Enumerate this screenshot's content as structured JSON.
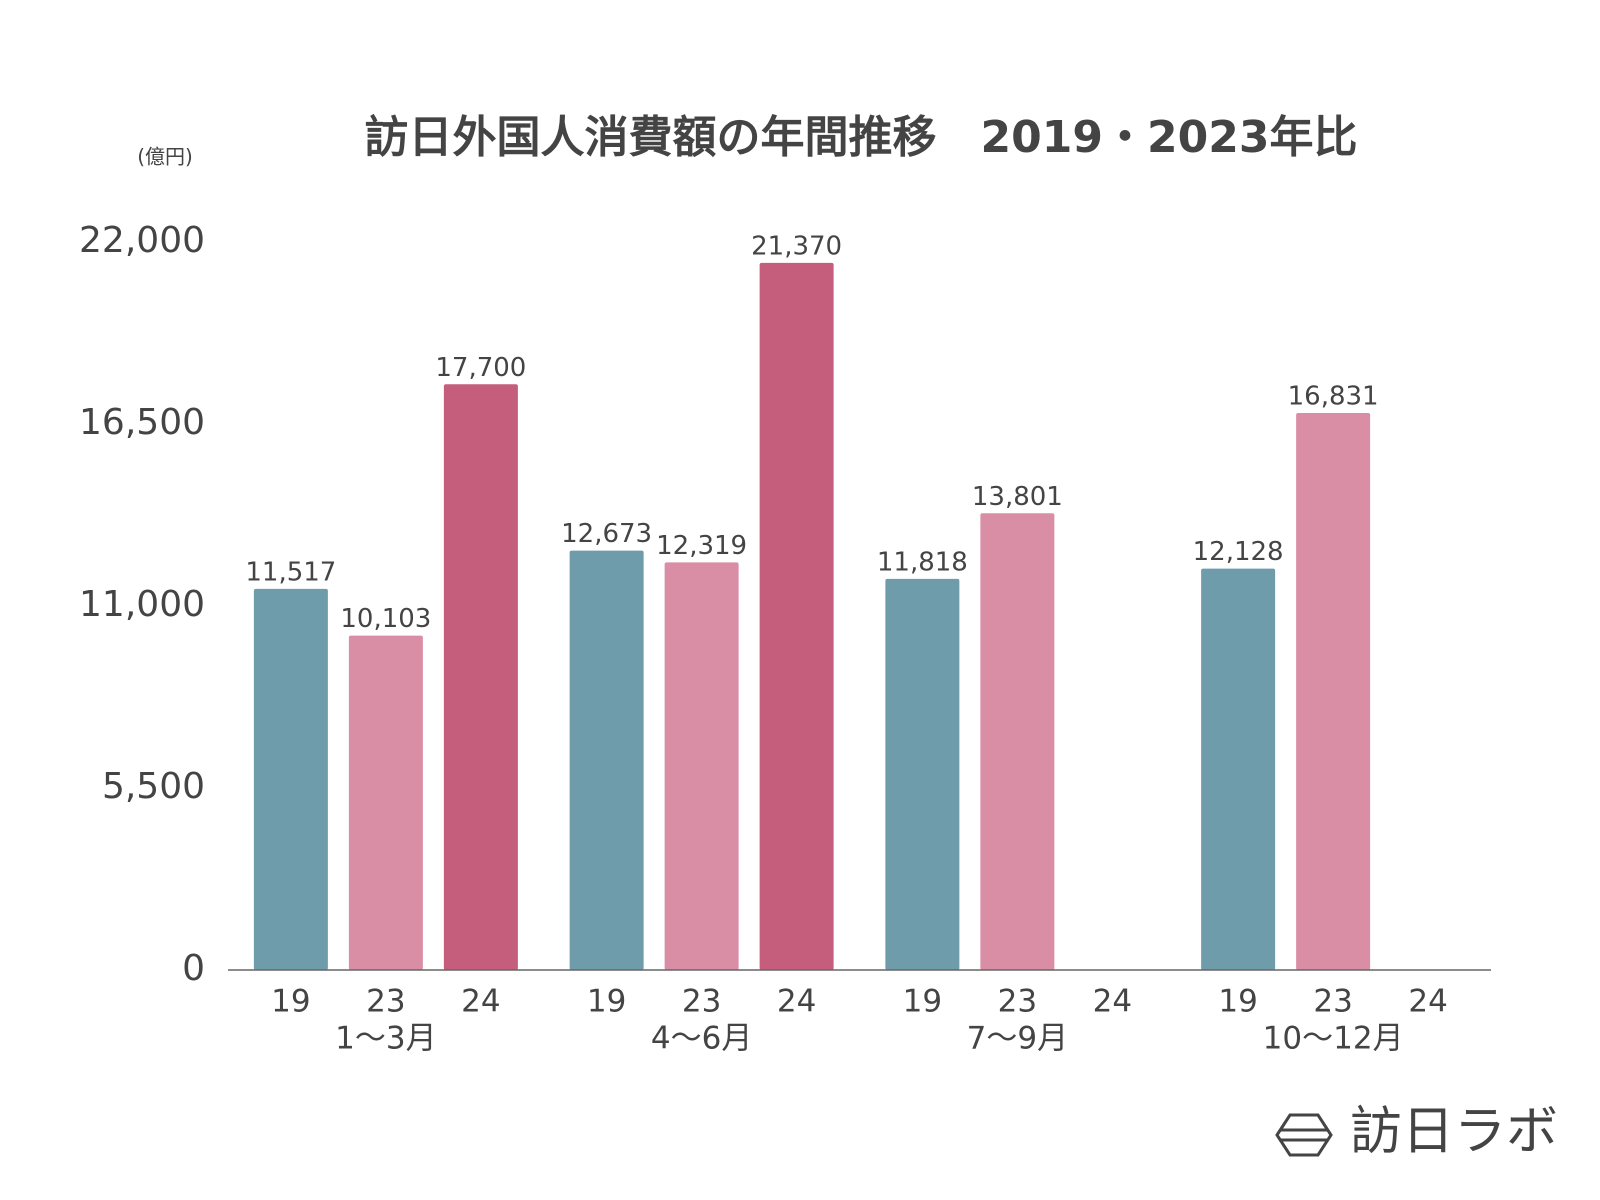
{
  "chart_data": {
    "type": "bar",
    "title": "訪日外国人消費額の年間推移　2019・2023年比",
    "y_unit": "(億円)",
    "categories": [
      "1～3月",
      "4～6月",
      "7～9月",
      "10～12月"
    ],
    "series": [
      {
        "name": "19",
        "color": "#6f9cab",
        "values": [
          11517,
          12673,
          11818,
          12128
        ],
        "value_labels": [
          "11,517",
          "12,673",
          "11,818",
          "12,128"
        ]
      },
      {
        "name": "23",
        "color": "#d98ea6",
        "values": [
          10103,
          12319,
          13801,
          16831
        ],
        "value_labels": [
          "10,103",
          "12,319",
          "13,801",
          "16,831"
        ]
      },
      {
        "name": "24",
        "color": "#c55d7c",
        "values": [
          17700,
          21370,
          null,
          null
        ],
        "value_labels": [
          "17,700",
          "21,370",
          null,
          null
        ]
      }
    ],
    "ylim": [
      0,
      22000
    ],
    "yticks": [
      0,
      {
        "value": 5500,
        "label": "5,500"
      },
      {
        "value": 11000,
        "label": "11,000"
      },
      {
        "value": 16500,
        "label": "16,500"
      },
      {
        "value": 22000,
        "label": "22,000"
      }
    ],
    "grid": false
  },
  "logo": "訪日ラボ"
}
